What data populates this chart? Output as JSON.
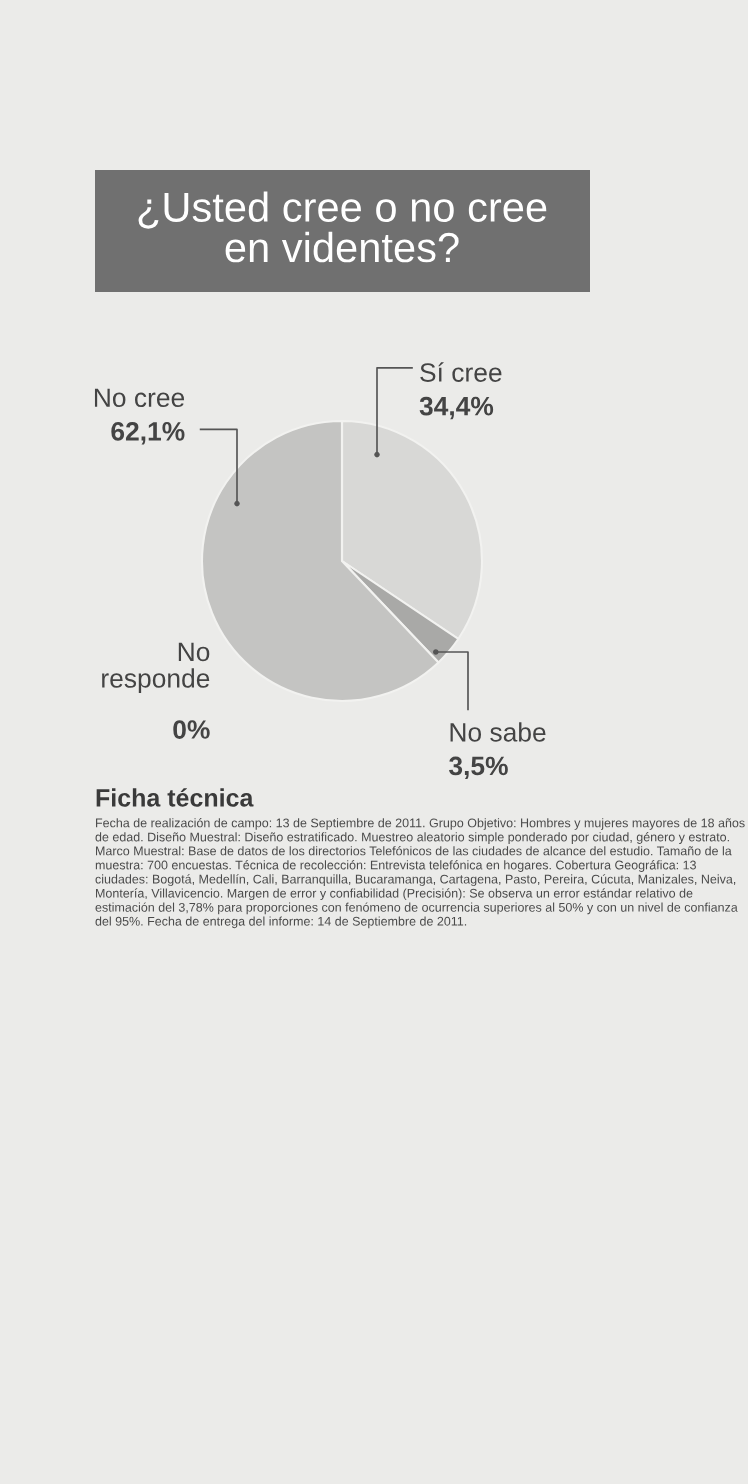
{
  "chart_data": {
    "type": "pie",
    "title": "¿Usted cree o no cree en videntes?",
    "categories": [
      "Sí cree",
      "No sabe",
      "No cree",
      "No responde"
    ],
    "values": [
      34.4,
      3.5,
      62.1,
      0
    ],
    "value_labels": [
      "34,4%",
      "3,5%",
      "62,1%",
      "0%"
    ],
    "colors": [
      "#d8d8d6",
      "#a9a9a7",
      "#c4c4c2",
      "#b8b8b6"
    ],
    "annotations": [
      "Ficha técnica",
      "Fecha de realización de campo: 13 de Septiembre de 2011. Grupo Objetivo: Hombres y mujeres mayores de 18 años de edad. Diseño Muestral: Diseño estratificado. Muestreo aleatorio simple ponderado por ciudad, género y estrato. Marco Muestral: Base de datos de los directorios Telefónicos de las ciudades de alcance del estudio. Tamaño de la muestra: 700 encuestas. Técnica de recolección: Entrevista telefónica en hogares. Cobertura Geográfica: 13 ciudades: Bogotá, Medellín, Cali, Barranquilla, Bucaramanga, Cartagena, Pasto, Pereira, Cúcuta, Manizales, Neiva, Montería, Villavicencio. Margen de error y confiabilidad (Precisión): Se observa un error estándar relativo de estimación del 3,78% para proporciones con fenómeno de ocurrencia superiores al 50% y con un nivel de confianza del 95%. Fecha de entrega del informe: 14 de Septiembre de 2011."
    ]
  }
}
